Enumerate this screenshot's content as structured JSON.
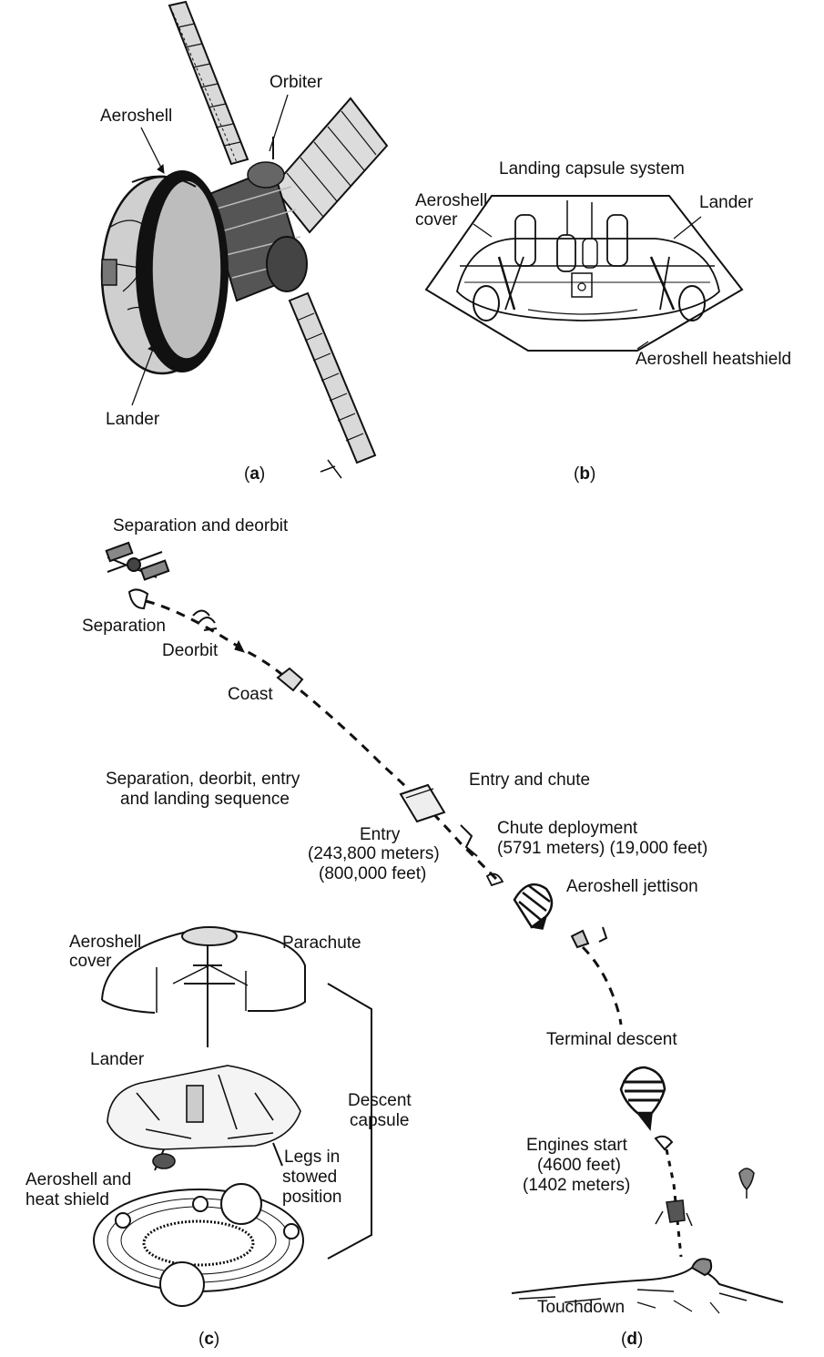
{
  "panel_a": {
    "letter": "a",
    "labels": {
      "orbiter": "Orbiter",
      "aeroshell": "Aeroshell",
      "lander": "Lander"
    }
  },
  "panel_b": {
    "letter": "b",
    "title": "Landing capsule system",
    "labels": {
      "aeroshell_cover_1": "Aeroshell",
      "aeroshell_cover_2": "cover",
      "lander": "Lander",
      "heatshield": "Aeroshell heatshield"
    }
  },
  "panel_d": {
    "letter": "d",
    "labels": {
      "separation_and_deorbit": "Separation and deorbit",
      "separation": "Separation",
      "deorbit": "Deorbit",
      "coast": "Coast",
      "sequence_1": "Separation, deorbit, entry",
      "sequence_2": "and landing sequence",
      "entry_and_chute": "Entry and chute",
      "entry_1": "Entry",
      "entry_2": "(243,800 meters)",
      "entry_3": "(800,000 feet)",
      "chute_1": "Chute deployment",
      "chute_2": "(5791 meters) (19,000 feet)",
      "aeroshell_jettison": "Aeroshell jettison",
      "terminal_descent": "Terminal descent",
      "engines_1": "Engines start",
      "engines_2": "(4600 feet)",
      "engines_3": "(1402 meters)",
      "touchdown": "Touchdown"
    }
  },
  "panel_c": {
    "letter": "c",
    "labels": {
      "aeroshell_cover_1": "Aeroshell",
      "aeroshell_cover_2": "cover",
      "parachute": "Parachute",
      "lander": "Lander",
      "descent_1": "Descent",
      "descent_2": "capsule",
      "legs_1": "Legs in",
      "legs_2": "stowed",
      "legs_3": "position",
      "heat_1": "Aeroshell and",
      "heat_2": "heat shield"
    }
  }
}
